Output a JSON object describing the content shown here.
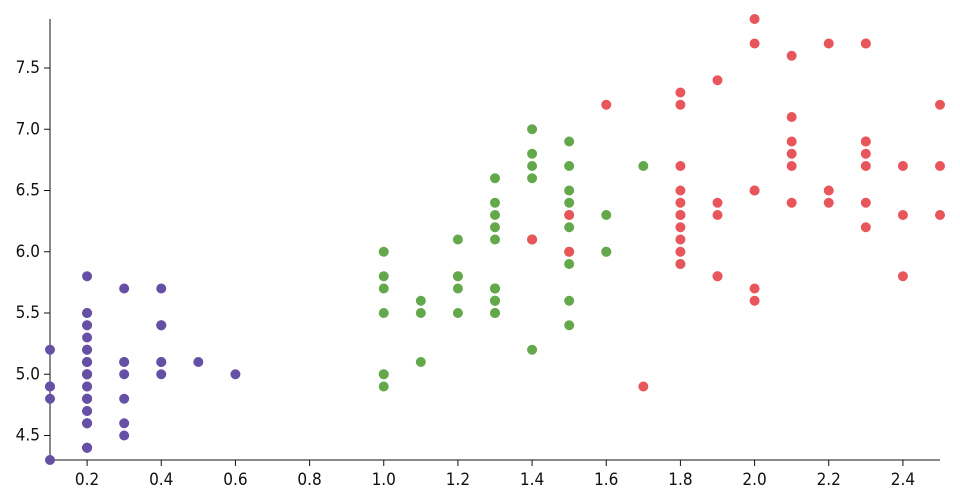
{
  "chart_data": {
    "type": "scatter",
    "xlim": [
      0.1,
      2.5
    ],
    "ylim": [
      4.3,
      7.9
    ],
    "xticks": [
      0.2,
      0.4,
      0.6,
      0.8,
      {
        "value": 1,
        "label": "1.0"
      },
      1.2,
      1.4,
      1.6,
      1.8,
      {
        "value": 2,
        "label": "2.0"
      },
      2.2,
      2.4
    ],
    "yticks": [
      4.5,
      {
        "value": 5,
        "label": "5.0"
      },
      5.5,
      {
        "value": 6,
        "label": "6.0"
      },
      6.5,
      {
        "value": 7,
        "label": "7.0"
      },
      7.5
    ],
    "series": [
      {
        "color": "#6650a6",
        "x": [
          0.2,
          0.2,
          0.2,
          0.2,
          0.2,
          0.4,
          0.3,
          0.2,
          0.2,
          0.1,
          0.2,
          0.2,
          0.1,
          0.1,
          0.2,
          0.4,
          0.4,
          0.3,
          0.3,
          0.3,
          0.2,
          0.4,
          0.2,
          0.5,
          0.2,
          0.2,
          0.4,
          0.2,
          0.2,
          0.2,
          0.2,
          0.4,
          0.1,
          0.2,
          0.2,
          0.2,
          0.2,
          0.1,
          0.2,
          0.2,
          0.3,
          0.3,
          0.2,
          0.6,
          0.4,
          0.3,
          0.2,
          0.2,
          0.2,
          0.2
        ],
        "y": [
          5.1,
          4.9,
          4.7,
          4.6,
          5.0,
          5.4,
          4.6,
          5.0,
          4.4,
          4.9,
          5.4,
          4.8,
          4.8,
          4.3,
          5.8,
          5.7,
          5.4,
          5.1,
          5.7,
          5.1,
          5.4,
          5.1,
          4.6,
          5.1,
          4.8,
          5.0,
          5.0,
          5.2,
          5.2,
          4.7,
          4.8,
          5.4,
          5.2,
          5.5,
          4.9,
          5.0,
          5.5,
          4.9,
          4.4,
          5.1,
          5.0,
          4.5,
          4.4,
          5.0,
          5.1,
          4.8,
          5.1,
          4.6,
          5.3,
          5.0
        ]
      },
      {
        "color": "#64a84c",
        "x": [
          1.4,
          1.5,
          1.5,
          1.3,
          1.5,
          1.3,
          1.6,
          1.0,
          1.3,
          1.4,
          1.0,
          1.5,
          1.0,
          1.4,
          1.3,
          1.4,
          1.5,
          1.0,
          1.5,
          1.1,
          1.8,
          1.3,
          1.5,
          1.2,
          1.3,
          1.4,
          1.4,
          1.7,
          1.5,
          1.0,
          1.1,
          1.0,
          1.2,
          1.6,
          1.5,
          1.6,
          1.5,
          1.3,
          1.3,
          1.3,
          1.2,
          1.4,
          1.2,
          1.0,
          1.3,
          1.2,
          1.3,
          1.3,
          1.1,
          1.3
        ],
        "y": [
          7.0,
          6.4,
          6.9,
          5.5,
          6.5,
          5.7,
          6.3,
          4.9,
          6.6,
          5.2,
          5.0,
          5.9,
          6.0,
          6.1,
          5.6,
          6.7,
          5.6,
          5.8,
          6.2,
          5.6,
          5.9,
          6.1,
          6.3,
          6.1,
          6.4,
          6.6,
          6.8,
          6.7,
          6.0,
          5.7,
          5.5,
          5.5,
          5.8,
          6.0,
          5.4,
          6.0,
          6.7,
          6.3,
          5.6,
          5.5,
          5.5,
          6.1,
          5.8,
          5.0,
          5.6,
          5.7,
          5.7,
          6.2,
          5.1,
          5.7
        ]
      },
      {
        "color": "#e8555a",
        "x": [
          2.5,
          1.9,
          2.1,
          1.8,
          2.2,
          2.1,
          1.7,
          1.8,
          1.8,
          2.5,
          2.0,
          1.9,
          2.1,
          2.0,
          2.4,
          2.3,
          1.8,
          2.2,
          2.3,
          1.5,
          2.3,
          2.0,
          2.0,
          1.8,
          2.1,
          1.8,
          1.8,
          1.8,
          2.1,
          1.6,
          1.9,
          2.0,
          2.2,
          1.5,
          1.4,
          2.3,
          2.4,
          1.8,
          1.8,
          2.1,
          2.4,
          2.3,
          1.9,
          2.3,
          2.5,
          2.3,
          1.9,
          2.0,
          2.3,
          1.8
        ],
        "y": [
          6.3,
          5.8,
          7.1,
          6.3,
          6.5,
          7.6,
          4.9,
          7.3,
          6.7,
          7.2,
          6.5,
          6.4,
          6.8,
          5.7,
          5.8,
          6.4,
          6.5,
          7.7,
          7.7,
          6.0,
          6.9,
          5.6,
          7.7,
          6.3,
          6.7,
          7.2,
          6.2,
          6.1,
          6.4,
          7.2,
          7.4,
          7.9,
          6.4,
          6.3,
          6.1,
          7.7,
          6.3,
          6.4,
          6.0,
          6.9,
          6.7,
          6.9,
          5.8,
          6.8,
          6.7,
          6.7,
          6.3,
          6.5,
          6.2,
          5.9
        ]
      }
    ]
  }
}
